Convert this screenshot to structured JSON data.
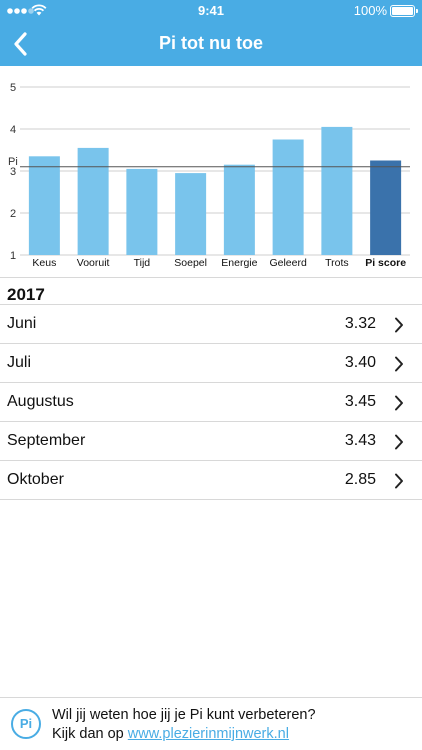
{
  "status_bar": {
    "time": "9:41",
    "battery_text": "100%"
  },
  "header": {
    "title": "Pi tot nu toe",
    "back_icon": "chevron-left-icon"
  },
  "colors": {
    "accent": "#49ace4",
    "bar": "#79c4ec",
    "highlight_bar": "#3a72ab",
    "pi_line": "#555555"
  },
  "chart_data": {
    "type": "bar",
    "categories": [
      "Keus",
      "Vooruit",
      "Tijd",
      "Soepel",
      "Energie",
      "Geleerd",
      "Trots",
      "Pi score"
    ],
    "values": [
      3.35,
      3.55,
      3.05,
      2.95,
      3.15,
      3.75,
      4.05,
      3.25
    ],
    "highlight_index": 7,
    "reference_line": {
      "label": "Pi",
      "value": 3.1
    },
    "yticks": [
      1,
      2,
      3,
      4,
      5
    ],
    "ylim": [
      1,
      5
    ],
    "grid": true
  },
  "section": {
    "title": "2017",
    "rows": [
      {
        "label": "Juni",
        "value": "3.32"
      },
      {
        "label": "Juli",
        "value": "3.40"
      },
      {
        "label": "Augustus",
        "value": "3.45"
      },
      {
        "label": "September",
        "value": "3.43"
      },
      {
        "label": "Oktober",
        "value": "2.85"
      }
    ]
  },
  "footer": {
    "logo_text": "Pi",
    "line1": "Wil jij weten hoe jij je Pi kunt verbeteren?",
    "line2_prefix": "Kijk dan op",
    "link_text": "www.plezierinmijnwerk.nl"
  }
}
